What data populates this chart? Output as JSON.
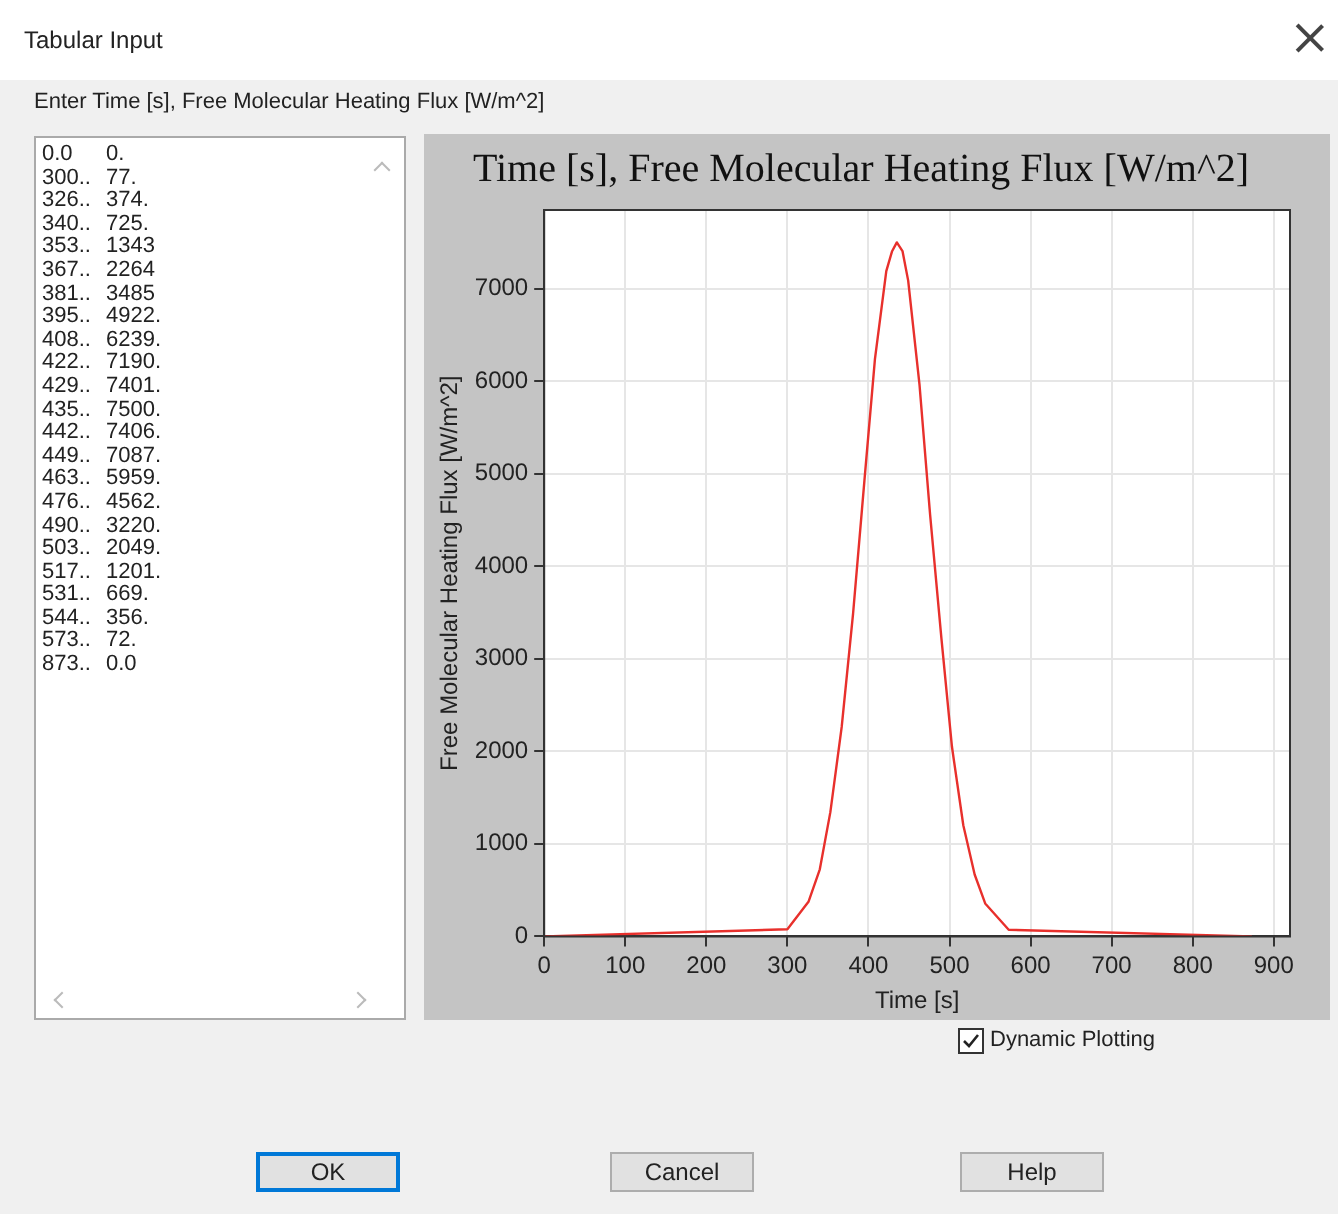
{
  "chart_data": {
    "type": "line",
    "title": "Time [s], Free Molecular Heating Flux [W/m^2]",
    "xlabel": "Time [s]",
    "ylabel": "Free Molecular Heating Flux [W/m^2]",
    "x": [
      0,
      300,
      326,
      340,
      353,
      367,
      381,
      395,
      408,
      422,
      429,
      435,
      442,
      449,
      463,
      476,
      490,
      503,
      517,
      531,
      544,
      573,
      873
    ],
    "series": [
      {
        "color": "#e8302c",
        "values": [
          0,
          77,
          374,
          725,
          1343,
          2264,
          3485,
          4922,
          6239,
          7190,
          7401,
          7500,
          7406,
          7087,
          5959,
          4562,
          3220,
          2049,
          1201,
          669,
          356,
          72,
          0
        ],
        "name": null
      }
    ],
    "xlim": [
      0,
      920
    ],
    "xticks": [
      0,
      100,
      200,
      300,
      400,
      500,
      600,
      700,
      800,
      900
    ],
    "ylim": [
      0,
      7850
    ],
    "yticks": [
      0,
      1000,
      2000,
      3000,
      4000,
      5000,
      6000,
      7000
    ],
    "grid": true,
    "legend": false,
    "marker": "none",
    "line_style": "solid",
    "annotations": [
      "Tabular Input",
      "Enter Time [s], Free Molecular Heating Flux [W/m^2]",
      "Dynamic Plotting",
      "OK",
      "Cancel",
      "Help",
      "0.0",
      "0.",
      "300..",
      "77.",
      "326..",
      "374.",
      "340..",
      "725.",
      "353..",
      "1343",
      "367..",
      "2264",
      "381..",
      "3485",
      "395..",
      "4922.",
      "408..",
      "6239.",
      "422..",
      "7190.",
      "429..",
      "7401.",
      "435..",
      "7500.",
      "442..",
      "7406.",
      "449..",
      "7087.",
      "463..",
      "5959.",
      "476..",
      "4562.",
      "490..",
      "3220.",
      "503..",
      "2049.",
      "517..",
      "1201.",
      "531..",
      "669.",
      "544..",
      "356.",
      "573..",
      "72.",
      "873..",
      "0.0"
    ]
  }
}
